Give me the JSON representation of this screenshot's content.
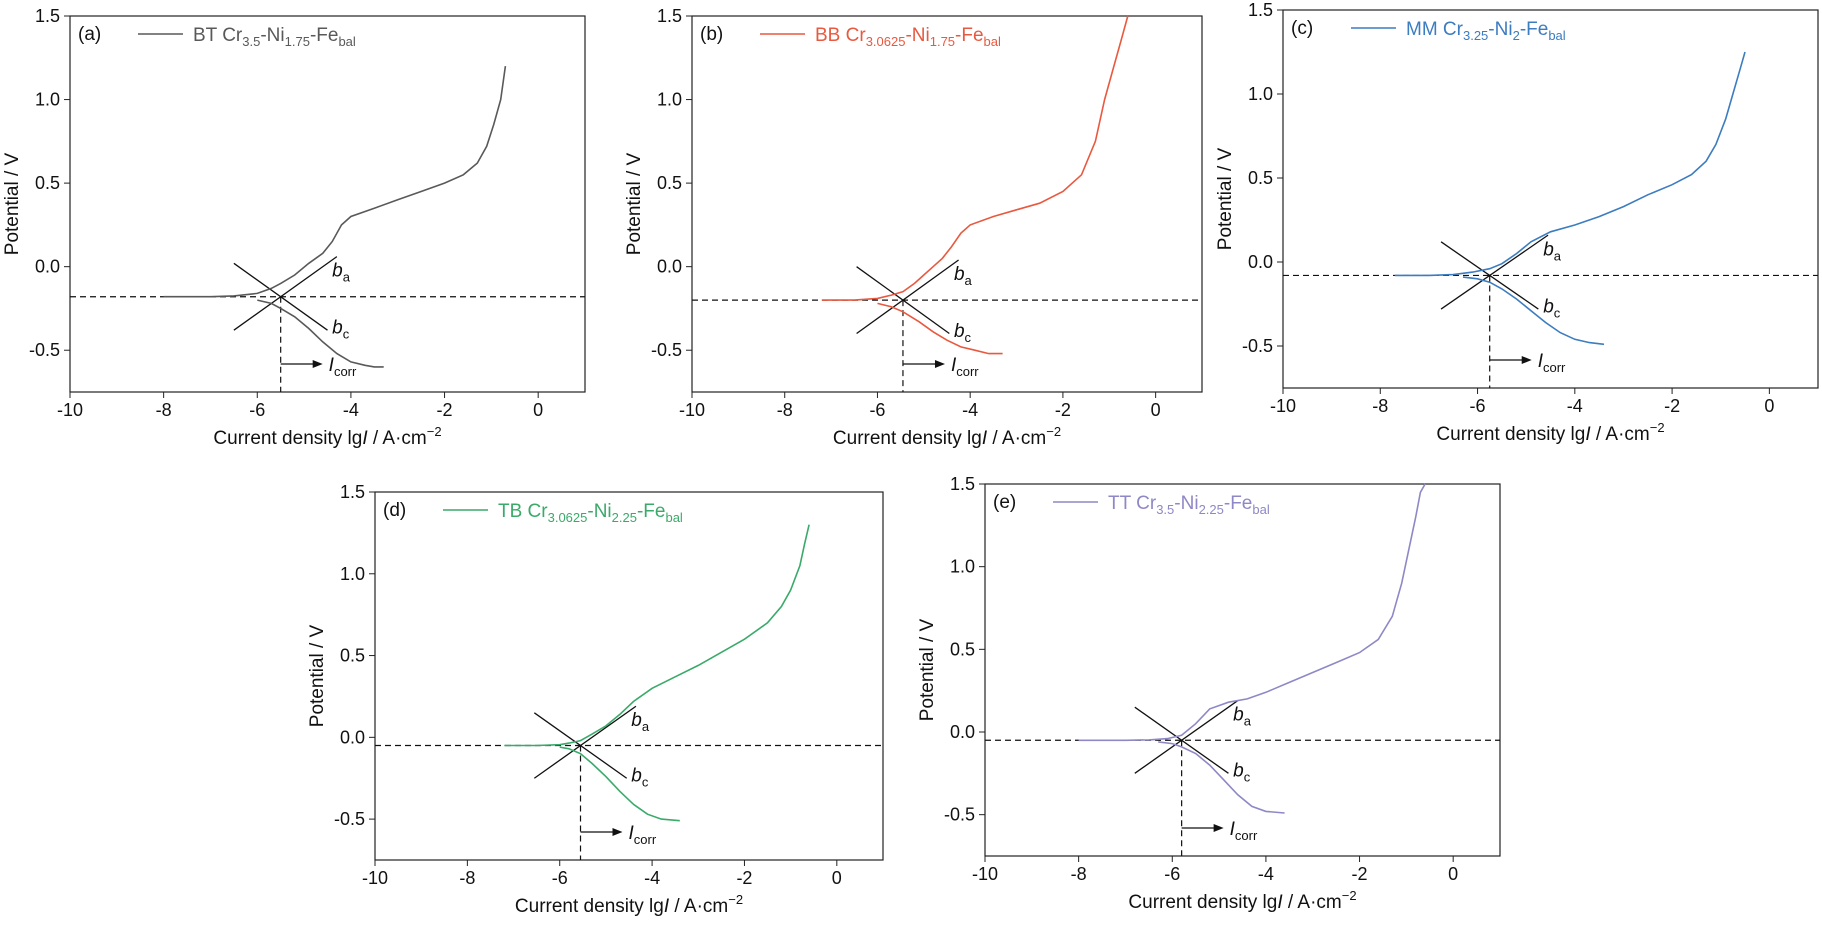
{
  "chart_data": [
    {
      "type": "line",
      "panel_label": "(a)",
      "legend": {
        "prefix": "BT Cr",
        "cr": "3.5",
        "ni_label": "-Ni",
        "ni": "1.75",
        "fe_label": "-Fe",
        "fe": "bal"
      },
      "color": "#595959",
      "xlabel_prefix": "Current density lg",
      "xlabel_italic": "I",
      "xlabel_unit": " / A·cm",
      "xlabel_exp": "−2",
      "ylabel": "Potential / V",
      "xlim": [
        -10,
        1
      ],
      "ylim": [
        -0.75,
        1.5
      ],
      "xticks": [
        "-10",
        "-8",
        "-6",
        "-4",
        "-2",
        "0"
      ],
      "yticks": [
        "-0.5",
        "0.0",
        "0.5",
        "1.0",
        "1.5"
      ],
      "ecorr": -0.18,
      "icorr_lg": -5.5,
      "ba_label": "b",
      "ba_sub": "a",
      "bc_label": "b",
      "bc_sub": "c",
      "icorr_label": "I",
      "icorr_sub": "corr",
      "x": [
        -8.0,
        -7.0,
        -6.5,
        -6.0,
        -5.7,
        -5.5,
        -5.2,
        -4.9,
        -4.6,
        -4.4,
        -4.2,
        -4.0,
        -3.5,
        -3.0,
        -2.5,
        -2.0,
        -1.6,
        -1.3,
        -1.1,
        -0.95,
        -0.8,
        -0.7
      ],
      "y": [
        -0.18,
        -0.18,
        -0.175,
        -0.16,
        -0.13,
        -0.1,
        -0.05,
        0.02,
        0.08,
        0.15,
        0.25,
        0.3,
        0.35,
        0.4,
        0.45,
        0.5,
        0.55,
        0.62,
        0.72,
        0.85,
        1.0,
        1.2
      ],
      "x2": [
        -6.0,
        -5.7,
        -5.5,
        -5.2,
        -4.9,
        -4.6,
        -4.3,
        -4.0,
        -3.7,
        -3.5,
        -3.3
      ],
      "y2": [
        -0.2,
        -0.22,
        -0.25,
        -0.3,
        -0.37,
        -0.45,
        -0.52,
        -0.57,
        -0.59,
        -0.6,
        -0.6
      ]
    },
    {
      "type": "line",
      "panel_label": "(b)",
      "legend": {
        "prefix": "BB Cr",
        "cr": "3.0625",
        "ni_label": "-Ni",
        "ni": "1.75",
        "fe_label": "-Fe",
        "fe": "bal"
      },
      "color": "#e8593f",
      "xlabel_prefix": "Current density lg",
      "xlabel_italic": "I",
      "xlabel_unit": " / A·cm",
      "xlabel_exp": "−2",
      "ylabel": "Potential / V",
      "xlim": [
        -10,
        1
      ],
      "ylim": [
        -0.75,
        1.5
      ],
      "xticks": [
        "-10",
        "-8",
        "-6",
        "-4",
        "-2",
        "0"
      ],
      "yticks": [
        "-0.5",
        "0.0",
        "0.5",
        "1.0",
        "1.5"
      ],
      "ecorr": -0.2,
      "icorr_lg": -5.45,
      "ba_label": "b",
      "ba_sub": "a",
      "bc_label": "b",
      "bc_sub": "c",
      "icorr_label": "I",
      "icorr_sub": "corr",
      "x": [
        -7.2,
        -6.5,
        -6.0,
        -5.7,
        -5.45,
        -5.2,
        -5.0,
        -4.8,
        -4.6,
        -4.4,
        -4.2,
        -4.0,
        -3.5,
        -3.0,
        -2.5,
        -2.0,
        -1.6,
        -1.3,
        -1.1,
        -0.9,
        -0.75,
        -0.6
      ],
      "y": [
        -0.2,
        -0.2,
        -0.19,
        -0.17,
        -0.15,
        -0.1,
        -0.05,
        0.0,
        0.05,
        0.12,
        0.2,
        0.25,
        0.3,
        0.34,
        0.38,
        0.45,
        0.55,
        0.75,
        1.0,
        1.2,
        1.35,
        1.5
      ],
      "x2": [
        -6.0,
        -5.7,
        -5.45,
        -5.1,
        -4.8,
        -4.5,
        -4.2,
        -3.9,
        -3.6,
        -3.3
      ],
      "y2": [
        -0.22,
        -0.24,
        -0.27,
        -0.33,
        -0.39,
        -0.44,
        -0.48,
        -0.5,
        -0.52,
        -0.52
      ]
    },
    {
      "type": "line",
      "panel_label": "(c)",
      "legend": {
        "prefix": "MM Cr",
        "cr": "3.25",
        "ni_label": "-Ni",
        "ni": "2",
        "fe_label": "-Fe",
        "fe": "bal"
      },
      "color": "#3c7cc0",
      "xlabel_prefix": "Current density lg",
      "xlabel_italic": "I",
      "xlabel_unit": " / A·cm",
      "xlabel_exp": "−2",
      "ylabel": "Potential / V",
      "xlim": [
        -10,
        1
      ],
      "ylim": [
        -0.75,
        1.5
      ],
      "xticks": [
        "-10",
        "-8",
        "-6",
        "-4",
        "-2",
        "0"
      ],
      "yticks": [
        "-0.5",
        "0.0",
        "0.5",
        "1.0",
        "1.5"
      ],
      "ecorr": -0.08,
      "icorr_lg": -5.75,
      "ba_label": "b",
      "ba_sub": "a",
      "bc_label": "b",
      "bc_sub": "c",
      "icorr_label": "I",
      "icorr_sub": "corr",
      "x": [
        -7.7,
        -7.0,
        -6.5,
        -6.1,
        -5.75,
        -5.5,
        -5.2,
        -4.9,
        -4.5,
        -4.0,
        -3.5,
        -3.0,
        -2.5,
        -2.0,
        -1.6,
        -1.3,
        -1.1,
        -0.9,
        -0.75,
        -0.6,
        -0.5
      ],
      "y": [
        -0.08,
        -0.08,
        -0.075,
        -0.06,
        -0.04,
        -0.01,
        0.05,
        0.12,
        0.18,
        0.22,
        0.27,
        0.33,
        0.4,
        0.46,
        0.52,
        0.6,
        0.7,
        0.85,
        1.0,
        1.15,
        1.25
      ],
      "x2": [
        -6.3,
        -6.0,
        -5.75,
        -5.5,
        -5.2,
        -4.9,
        -4.6,
        -4.3,
        -4.0,
        -3.7,
        -3.4
      ],
      "y2": [
        -0.09,
        -0.1,
        -0.12,
        -0.16,
        -0.22,
        -0.29,
        -0.36,
        -0.42,
        -0.46,
        -0.48,
        -0.49
      ]
    },
    {
      "type": "line",
      "panel_label": "(d)",
      "legend": {
        "prefix": "TB Cr",
        "cr": "3.0625",
        "ni_label": "-Ni",
        "ni": "2.25",
        "fe_label": "-Fe",
        "fe": "bal"
      },
      "color": "#3aaa6a",
      "xlabel_prefix": "Current density lg",
      "xlabel_italic": "I",
      "xlabel_unit": " / A·cm",
      "xlabel_exp": "−2",
      "ylabel": "Potential / V",
      "xlim": [
        -10,
        1
      ],
      "ylim": [
        -0.75,
        1.5
      ],
      "xticks": [
        "-10",
        "-8",
        "-6",
        "-4",
        "-2",
        "0"
      ],
      "yticks": [
        "-0.5",
        "0.0",
        "0.5",
        "1.0",
        "1.5"
      ],
      "ecorr": -0.05,
      "icorr_lg": -5.55,
      "ba_label": "b",
      "ba_sub": "a",
      "bc_label": "b",
      "bc_sub": "c",
      "icorr_label": "I",
      "icorr_sub": "corr",
      "x": [
        -7.2,
        -6.5,
        -6.0,
        -5.8,
        -5.55,
        -5.3,
        -5.0,
        -4.7,
        -4.4,
        -4.0,
        -3.5,
        -3.0,
        -2.5,
        -2.0,
        -1.5,
        -1.2,
        -1.0,
        -0.8,
        -0.7,
        -0.6
      ],
      "y": [
        -0.05,
        -0.05,
        -0.045,
        -0.035,
        -0.02,
        0.02,
        0.07,
        0.14,
        0.22,
        0.3,
        0.37,
        0.44,
        0.52,
        0.6,
        0.7,
        0.8,
        0.9,
        1.05,
        1.18,
        1.3
      ],
      "x2": [
        -6.0,
        -5.8,
        -5.55,
        -5.3,
        -5.0,
        -4.7,
        -4.4,
        -4.1,
        -3.8,
        -3.4
      ],
      "y2": [
        -0.06,
        -0.07,
        -0.1,
        -0.16,
        -0.24,
        -0.33,
        -0.41,
        -0.47,
        -0.5,
        -0.51
      ]
    },
    {
      "type": "line",
      "panel_label": "(e)",
      "legend": {
        "prefix": "TT Cr",
        "cr": "3.5",
        "ni_label": "-Ni",
        "ni": "2.25",
        "fe_label": "-Fe",
        "fe": "bal"
      },
      "color": "#8e88c6",
      "xlabel_prefix": "Current density lg",
      "xlabel_italic": "I",
      "xlabel_unit": " / A·cm",
      "xlabel_exp": "−2",
      "ylabel": "Potential / V",
      "xlim": [
        -10,
        1
      ],
      "ylim": [
        -0.75,
        1.5
      ],
      "xticks": [
        "-10",
        "-8",
        "-6",
        "-4",
        "-2",
        "0"
      ],
      "yticks": [
        "-0.5",
        "0.0",
        "0.5",
        "1.0",
        "1.5"
      ],
      "ecorr": -0.05,
      "icorr_lg": -5.8,
      "ba_label": "b",
      "ba_sub": "a",
      "bc_label": "b",
      "bc_sub": "c",
      "icorr_label": "I",
      "icorr_sub": "corr",
      "x": [
        -8.0,
        -7.0,
        -6.5,
        -6.1,
        -5.8,
        -5.5,
        -5.2,
        -4.8,
        -4.4,
        -4.0,
        -3.5,
        -3.0,
        -2.5,
        -2.0,
        -1.6,
        -1.3,
        -1.1,
        -0.95,
        -0.8,
        -0.7,
        -0.6
      ],
      "y": [
        -0.05,
        -0.05,
        -0.048,
        -0.04,
        -0.02,
        0.05,
        0.14,
        0.18,
        0.2,
        0.24,
        0.3,
        0.36,
        0.42,
        0.48,
        0.56,
        0.7,
        0.9,
        1.1,
        1.3,
        1.45,
        1.5
      ],
      "x2": [
        -6.3,
        -6.0,
        -5.8,
        -5.5,
        -5.2,
        -4.9,
        -4.6,
        -4.3,
        -4.0,
        -3.6
      ],
      "y2": [
        -0.06,
        -0.07,
        -0.09,
        -0.13,
        -0.2,
        -0.29,
        -0.38,
        -0.45,
        -0.48,
        -0.49
      ]
    }
  ]
}
